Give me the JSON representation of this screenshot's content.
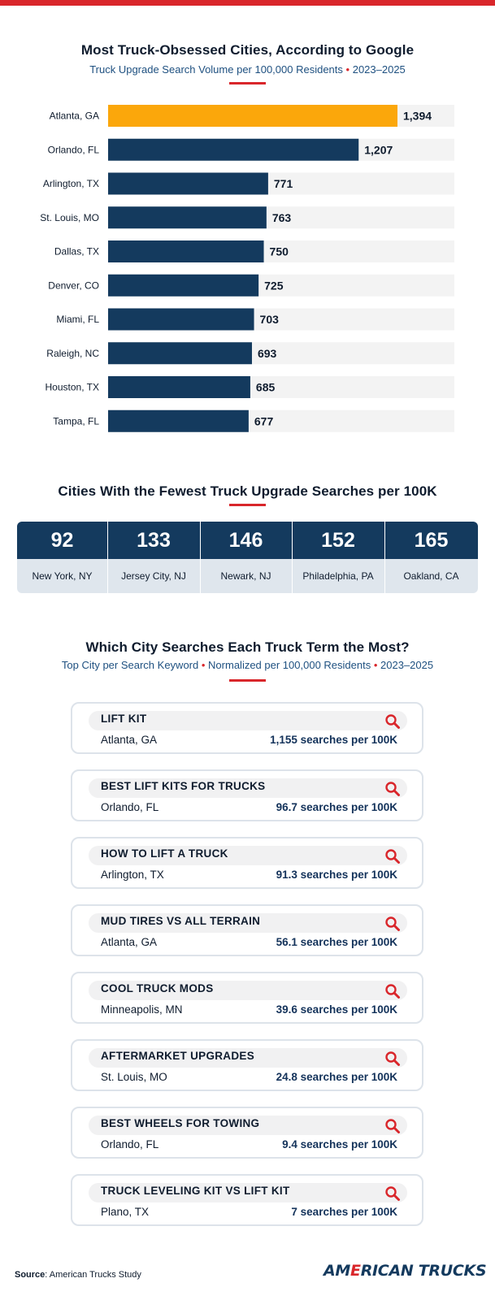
{
  "chart_data": {
    "type": "bar",
    "orientation": "horizontal",
    "title": "Most Truck-Obsessed Cities, According to Google",
    "subtitle": "Truck Upgrade Search Volume per 100,000 Residents",
    "subtitle_period": "2023–2025",
    "categories": [
      "Atlanta, GA",
      "Orlando, FL",
      "Arlington, TX",
      "St. Louis, MO",
      "Dallas, TX",
      "Denver, CO",
      "Miami, FL",
      "Raleigh, NC",
      "Houston, TX",
      "Tampa, FL"
    ],
    "values": [
      1394,
      1207,
      771,
      763,
      750,
      725,
      703,
      693,
      685,
      677
    ],
    "value_labels": [
      "1,394",
      "1,207",
      "771",
      "763",
      "750",
      "725",
      "703",
      "693",
      "685",
      "677"
    ],
    "highlight_index": 0,
    "xlim": [
      0,
      1600
    ],
    "grid": false,
    "colors": {
      "highlight": "#fba70b",
      "bar": "#143a5e",
      "track": "#f3f3f3"
    }
  },
  "fewest": {
    "title": "Cities With the Fewest Truck Upgrade Searches per 100K",
    "items": [
      {
        "value": "92",
        "city": "New York, NY"
      },
      {
        "value": "133",
        "city": "Jersey City, NJ"
      },
      {
        "value": "146",
        "city": "Newark, NJ"
      },
      {
        "value": "152",
        "city": "Philadelphia, PA"
      },
      {
        "value": "165",
        "city": "Oakland, CA"
      }
    ]
  },
  "terms": {
    "title": "Which City Searches Each Truck Term the Most?",
    "subtitle_a": "Top City per Search Keyword",
    "subtitle_b": "Normalized per 100,000 Residents",
    "subtitle_c": "2023–2025",
    "items": [
      {
        "keyword": "LIFT KIT",
        "city": "Atlanta, GA",
        "value": "1,155 searches per 100K"
      },
      {
        "keyword": "BEST LIFT KITS FOR TRUCKS",
        "city": "Orlando, FL",
        "value": "96.7 searches per 100K"
      },
      {
        "keyword": "HOW TO LIFT A TRUCK",
        "city": "Arlington, TX",
        "value": "91.3 searches per 100K"
      },
      {
        "keyword": "MUD TIRES VS ALL TERRAIN",
        "city": "Atlanta, GA",
        "value": "56.1 searches per 100K"
      },
      {
        "keyword": "COOL TRUCK MODS",
        "city": "Minneapolis, MN",
        "value": "39.6 searches per 100K"
      },
      {
        "keyword": "AFTERMARKET UPGRADES",
        "city": "St. Louis, MO",
        "value": "24.8 searches per 100K"
      },
      {
        "keyword": "BEST WHEELS FOR TOWING",
        "city": "Orlando, FL",
        "value": "9.4 searches per 100K"
      },
      {
        "keyword": "TRUCK LEVELING KIT VS LIFT KIT",
        "city": "Plano, TX",
        "value": "7 searches per 100K"
      }
    ]
  },
  "footer": {
    "source_label": "Source",
    "source_text": ": American Trucks Study",
    "brand_a": "AM",
    "brand_e": "E",
    "brand_b": "RICAN TRUCKS"
  },
  "icons": {
    "search": "search-icon"
  }
}
